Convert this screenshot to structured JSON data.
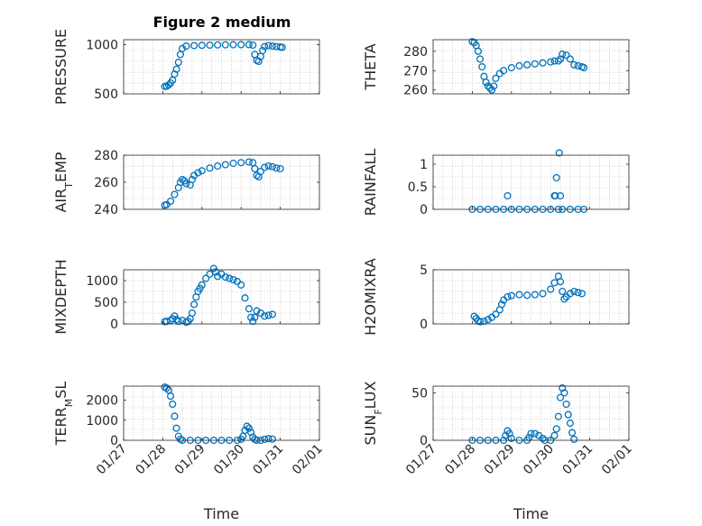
{
  "figure": {
    "title": "Figure 2 medium",
    "marker_color": "#0072BD",
    "axes_color": "#262626",
    "grid_color": "#b0b0b0"
  },
  "chart_data": [
    {
      "type": "scatter",
      "ylabel": "PRESSURE",
      "ylim": [
        500,
        1050
      ],
      "yticks": [
        500,
        1000
      ],
      "xlim": [
        1,
        4.1
      ],
      "points": [
        [
          1.05,
          575
        ],
        [
          1.1,
          578
        ],
        [
          1.15,
          590
        ],
        [
          1.2,
          610
        ],
        [
          1.25,
          640
        ],
        [
          1.3,
          700
        ],
        [
          1.35,
          750
        ],
        [
          1.4,
          820
        ],
        [
          1.45,
          900
        ],
        [
          1.5,
          960
        ],
        [
          1.6,
          985
        ],
        [
          1.8,
          990
        ],
        [
          2.0,
          993
        ],
        [
          2.2,
          995
        ],
        [
          2.4,
          997
        ],
        [
          2.6,
          998
        ],
        [
          2.8,
          999
        ],
        [
          3.0,
          1000
        ],
        [
          3.2,
          1000
        ],
        [
          3.3,
          995
        ],
        [
          3.35,
          900
        ],
        [
          3.4,
          840
        ],
        [
          3.45,
          830
        ],
        [
          3.5,
          880
        ],
        [
          3.55,
          940
        ],
        [
          3.6,
          980
        ],
        [
          3.7,
          990
        ],
        [
          3.8,
          985
        ],
        [
          3.9,
          980
        ],
        [
          4.0,
          975
        ],
        [
          4.05,
          972
        ]
      ]
    },
    {
      "type": "scatter",
      "ylabel": "THETA",
      "ylim": [
        258,
        286
      ],
      "yticks": [
        260,
        270,
        280
      ],
      "xlim": [
        1,
        4.1
      ],
      "points": [
        [
          1.0,
          285
        ],
        [
          1.05,
          284.5
        ],
        [
          1.1,
          283
        ],
        [
          1.15,
          280
        ],
        [
          1.2,
          276
        ],
        [
          1.25,
          272
        ],
        [
          1.3,
          267
        ],
        [
          1.35,
          264
        ],
        [
          1.4,
          262
        ],
        [
          1.45,
          261
        ],
        [
          1.5,
          260
        ],
        [
          1.55,
          262
        ],
        [
          1.6,
          266
        ],
        [
          1.7,
          268.5
        ],
        [
          1.8,
          270
        ],
        [
          2.0,
          271.5
        ],
        [
          2.2,
          272.5
        ],
        [
          2.4,
          273
        ],
        [
          2.6,
          273.5
        ],
        [
          2.8,
          274
        ],
        [
          3.0,
          274.5
        ],
        [
          3.1,
          275
        ],
        [
          3.2,
          275
        ],
        [
          3.25,
          276
        ],
        [
          3.3,
          278.5
        ],
        [
          3.4,
          278
        ],
        [
          3.5,
          276
        ],
        [
          3.6,
          273
        ],
        [
          3.7,
          272.5
        ],
        [
          3.8,
          272
        ],
        [
          3.85,
          271.5
        ]
      ]
    },
    {
      "type": "scatter",
      "ylabel": "AIR_TEMP",
      "ylim": [
        240,
        280
      ],
      "yticks": [
        240,
        260,
        280
      ],
      "xlim": [
        1,
        4.1
      ],
      "points": [
        [
          1.05,
          243
        ],
        [
          1.1,
          243.5
        ],
        [
          1.2,
          246
        ],
        [
          1.3,
          251
        ],
        [
          1.4,
          256
        ],
        [
          1.45,
          260
        ],
        [
          1.5,
          262
        ],
        [
          1.55,
          261
        ],
        [
          1.6,
          259
        ],
        [
          1.7,
          258
        ],
        [
          1.75,
          262
        ],
        [
          1.8,
          265
        ],
        [
          1.9,
          267
        ],
        [
          2.0,
          268.5
        ],
        [
          2.2,
          270.5
        ],
        [
          2.4,
          272
        ],
        [
          2.6,
          273
        ],
        [
          2.8,
          274
        ],
        [
          3.0,
          274.5
        ],
        [
          3.2,
          275
        ],
        [
          3.3,
          274.5
        ],
        [
          3.35,
          270
        ],
        [
          3.4,
          265
        ],
        [
          3.45,
          264
        ],
        [
          3.5,
          268
        ],
        [
          3.6,
          271
        ],
        [
          3.7,
          272
        ],
        [
          3.8,
          271.5
        ],
        [
          3.9,
          270.5
        ],
        [
          4.0,
          270
        ]
      ]
    },
    {
      "type": "scatter",
      "ylabel": "RAINFALL",
      "ylim": [
        0,
        1.2
      ],
      "yticks": [
        0,
        0.5,
        1
      ],
      "xlim": [
        1,
        4.1
      ],
      "points": [
        [
          1.0,
          0
        ],
        [
          1.2,
          0
        ],
        [
          1.4,
          0
        ],
        [
          1.6,
          0
        ],
        [
          1.8,
          0
        ],
        [
          1.9,
          0.3
        ],
        [
          2.0,
          0
        ],
        [
          2.2,
          0
        ],
        [
          2.4,
          0
        ],
        [
          2.6,
          0
        ],
        [
          2.8,
          0
        ],
        [
          3.0,
          0
        ],
        [
          3.1,
          0.3
        ],
        [
          3.12,
          0.3
        ],
        [
          3.15,
          0.7
        ],
        [
          3.2,
          0
        ],
        [
          3.22,
          1.25
        ],
        [
          3.25,
          0.3
        ],
        [
          3.3,
          0
        ],
        [
          3.5,
          0
        ],
        [
          3.7,
          0
        ],
        [
          3.85,
          0
        ]
      ]
    },
    {
      "type": "scatter",
      "ylabel": "MIXDEPTH",
      "ylim": [
        0,
        1250
      ],
      "yticks": [
        0,
        500,
        1000
      ],
      "xlim": [
        1,
        4.1
      ],
      "points": [
        [
          1.05,
          50
        ],
        [
          1.1,
          60
        ],
        [
          1.2,
          80
        ],
        [
          1.25,
          120
        ],
        [
          1.3,
          180
        ],
        [
          1.35,
          100
        ],
        [
          1.4,
          60
        ],
        [
          1.5,
          80
        ],
        [
          1.6,
          40
        ],
        [
          1.65,
          60
        ],
        [
          1.7,
          120
        ],
        [
          1.75,
          250
        ],
        [
          1.8,
          450
        ],
        [
          1.85,
          620
        ],
        [
          1.9,
          750
        ],
        [
          1.95,
          820
        ],
        [
          2.0,
          900
        ],
        [
          2.1,
          1050
        ],
        [
          2.2,
          1150
        ],
        [
          2.3,
          1280
        ],
        [
          2.35,
          1200
        ],
        [
          2.4,
          1100
        ],
        [
          2.5,
          1150
        ],
        [
          2.6,
          1080
        ],
        [
          2.7,
          1050
        ],
        [
          2.8,
          1020
        ],
        [
          2.9,
          980
        ],
        [
          3.0,
          900
        ],
        [
          3.1,
          600
        ],
        [
          3.2,
          350
        ],
        [
          3.25,
          150
        ],
        [
          3.3,
          60
        ],
        [
          3.35,
          150
        ],
        [
          3.4,
          300
        ],
        [
          3.5,
          250
        ],
        [
          3.6,
          180
        ],
        [
          3.7,
          200
        ],
        [
          3.8,
          220
        ]
      ]
    },
    {
      "type": "scatter",
      "ylabel": "H2OMIXRA",
      "ylim": [
        0,
        5
      ],
      "yticks": [
        0,
        5
      ],
      "xlim": [
        1,
        4.1
      ],
      "points": [
        [
          1.05,
          0.7
        ],
        [
          1.1,
          0.5
        ],
        [
          1.15,
          0.3
        ],
        [
          1.2,
          0.2
        ],
        [
          1.3,
          0.25
        ],
        [
          1.4,
          0.4
        ],
        [
          1.5,
          0.6
        ],
        [
          1.6,
          0.9
        ],
        [
          1.7,
          1.3
        ],
        [
          1.75,
          1.8
        ],
        [
          1.8,
          2.2
        ],
        [
          1.9,
          2.5
        ],
        [
          2.0,
          2.6
        ],
        [
          2.2,
          2.7
        ],
        [
          2.4,
          2.65
        ],
        [
          2.6,
          2.7
        ],
        [
          2.8,
          2.8
        ],
        [
          3.0,
          3.2
        ],
        [
          3.1,
          3.8
        ],
        [
          3.2,
          4.4
        ],
        [
          3.25,
          3.9
        ],
        [
          3.3,
          3.0
        ],
        [
          3.35,
          2.3
        ],
        [
          3.4,
          2.5
        ],
        [
          3.5,
          2.8
        ],
        [
          3.6,
          3.0
        ],
        [
          3.7,
          2.9
        ],
        [
          3.8,
          2.8
        ]
      ]
    },
    {
      "type": "scatter",
      "ylabel": "TERR_MSL",
      "ylim": [
        0,
        2700
      ],
      "yticks": [
        0,
        1000,
        2000
      ],
      "xlim": [
        1,
        4.1
      ],
      "points": [
        [
          1.05,
          2650
        ],
        [
          1.1,
          2600
        ],
        [
          1.15,
          2500
        ],
        [
          1.2,
          2200
        ],
        [
          1.25,
          1800
        ],
        [
          1.3,
          1200
        ],
        [
          1.35,
          600
        ],
        [
          1.4,
          200
        ],
        [
          1.45,
          50
        ],
        [
          1.5,
          0
        ],
        [
          1.7,
          0
        ],
        [
          1.9,
          0
        ],
        [
          2.1,
          0
        ],
        [
          2.3,
          0
        ],
        [
          2.5,
          0
        ],
        [
          2.7,
          0
        ],
        [
          2.9,
          0
        ],
        [
          3.0,
          50
        ],
        [
          3.05,
          200
        ],
        [
          3.1,
          500
        ],
        [
          3.15,
          700
        ],
        [
          3.2,
          600
        ],
        [
          3.25,
          400
        ],
        [
          3.3,
          150
        ],
        [
          3.35,
          50
        ],
        [
          3.4,
          0
        ],
        [
          3.5,
          0
        ],
        [
          3.6,
          50
        ],
        [
          3.7,
          80
        ],
        [
          3.8,
          60
        ]
      ]
    },
    {
      "type": "scatter",
      "ylabel": "SUN_FLUX",
      "ylim": [
        0,
        57
      ],
      "yticks": [
        0,
        50
      ],
      "xlim": [
        1,
        4.1
      ],
      "points": [
        [
          1.0,
          0
        ],
        [
          1.2,
          0
        ],
        [
          1.4,
          0
        ],
        [
          1.6,
          0
        ],
        [
          1.8,
          0
        ],
        [
          1.85,
          5
        ],
        [
          1.9,
          10
        ],
        [
          1.95,
          7
        ],
        [
          2.0,
          2
        ],
        [
          2.2,
          0
        ],
        [
          2.4,
          0
        ],
        [
          2.45,
          3
        ],
        [
          2.5,
          7
        ],
        [
          2.6,
          7
        ],
        [
          2.7,
          5
        ],
        [
          2.8,
          2
        ],
        [
          2.85,
          0
        ],
        [
          3.0,
          0
        ],
        [
          3.1,
          5
        ],
        [
          3.15,
          12
        ],
        [
          3.2,
          25
        ],
        [
          3.25,
          45
        ],
        [
          3.3,
          55
        ],
        [
          3.35,
          50
        ],
        [
          3.4,
          38
        ],
        [
          3.45,
          27
        ],
        [
          3.5,
          18
        ],
        [
          3.55,
          8
        ],
        [
          3.6,
          1
        ]
      ]
    }
  ],
  "xaxis": {
    "label": "Time",
    "ticks": [
      {
        "pos": 0,
        "label": "01/27"
      },
      {
        "pos": 1,
        "label": "01/28"
      },
      {
        "pos": 2,
        "label": "01/29"
      },
      {
        "pos": 3,
        "label": "01/30"
      },
      {
        "pos": 4,
        "label": "01/31"
      },
      {
        "pos": 5,
        "label": "02/01"
      }
    ],
    "xlim": [
      0,
      5
    ]
  }
}
